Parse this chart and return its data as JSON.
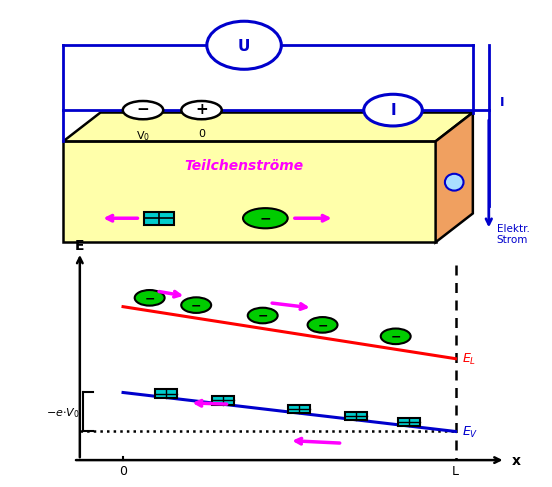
{
  "bg_color": "#ffffff",
  "blue_color": "#0000cc",
  "magenta_color": "#ff00ff",
  "red_color": "#ff0000",
  "green_color": "#00cc00",
  "cyan_color": "#00cccc",
  "box_face": "#ffffaa",
  "box_side": "#f0a060",
  "title_text": "Teilchenströme",
  "xlabel": "x",
  "ylabel": "E",
  "x0_label": "0",
  "xL_label": "L",
  "U_label": "U",
  "I_label": "I",
  "Istrom_label": "I",
  "Elektr_label": "Elektr.\nStrom",
  "V0_label": "V$_0$",
  "zero_label": "0",
  "eV0_label": "$-e{\\cdot}V_0$"
}
